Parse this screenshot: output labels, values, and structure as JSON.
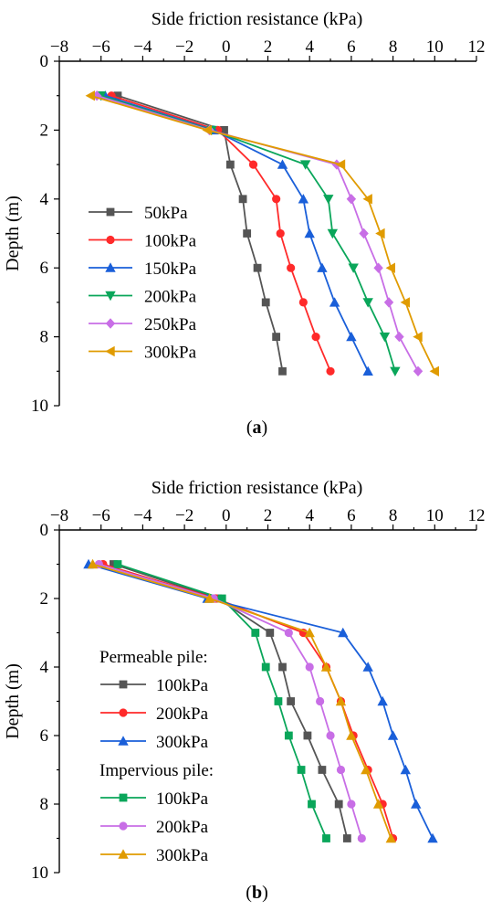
{
  "chart_data": [
    {
      "type": "line",
      "panel_label": "a",
      "xlabel": "Side friction resistance (kPa)",
      "ylabel": "Depth (m)",
      "xlim": [
        -8,
        12
      ],
      "ylim": [
        10,
        0
      ],
      "x_ticks": [
        -8,
        -6,
        -4,
        -2,
        0,
        2,
        4,
        6,
        8,
        10,
        12
      ],
      "y_ticks": [
        0,
        2,
        4,
        6,
        8,
        10
      ],
      "x_axis_position": "top",
      "y_inverted": true,
      "grid": false,
      "legend_position": "left-middle",
      "legend_title": "",
      "series": [
        {
          "name": "50kPa",
          "color": "#555555",
          "marker": "square",
          "depth": [
            1,
            2,
            3,
            4,
            5,
            6,
            7,
            8,
            9
          ],
          "values": [
            -5.2,
            -0.1,
            0.2,
            0.8,
            1.0,
            1.5,
            1.9,
            2.4,
            2.7
          ]
        },
        {
          "name": "100kPa",
          "color": "#ff2a2a",
          "marker": "circle",
          "depth": [
            1,
            2,
            3,
            4,
            5,
            6,
            7,
            8,
            9
          ],
          "values": [
            -5.5,
            -0.4,
            1.3,
            2.4,
            2.6,
            3.1,
            3.7,
            4.3,
            5.0
          ]
        },
        {
          "name": "150kPa",
          "color": "#1a5fd9",
          "marker": "triangle-up",
          "depth": [
            1,
            2,
            3,
            4,
            5,
            6,
            7,
            8,
            9
          ],
          "values": [
            -5.8,
            -0.6,
            2.7,
            3.7,
            4.0,
            4.6,
            5.2,
            6.0,
            6.8
          ]
        },
        {
          "name": "200kPa",
          "color": "#0aa65a",
          "marker": "triangle-down",
          "depth": [
            1,
            2,
            3,
            4,
            5,
            6,
            7,
            8,
            9
          ],
          "values": [
            -6.0,
            -0.7,
            3.8,
            4.9,
            5.1,
            6.1,
            6.8,
            7.6,
            8.1
          ]
        },
        {
          "name": "250kPa",
          "color": "#c86ee6",
          "marker": "diamond",
          "depth": [
            1,
            2,
            3,
            4,
            5,
            6,
            7,
            8,
            9
          ],
          "values": [
            -6.2,
            -0.8,
            5.3,
            6.0,
            6.6,
            7.3,
            7.8,
            8.3,
            9.2
          ]
        },
        {
          "name": "300kPa",
          "color": "#e09b00",
          "marker": "triangle-left",
          "depth": [
            1,
            2,
            3,
            4,
            5,
            6,
            7,
            8,
            9
          ],
          "values": [
            -6.5,
            -0.9,
            5.5,
            6.8,
            7.4,
            7.9,
            8.6,
            9.2,
            10.0
          ]
        }
      ]
    },
    {
      "type": "line",
      "panel_label": "b",
      "xlabel": "Side friction resistance (kPa)",
      "ylabel": "Depth (m)",
      "xlim": [
        -8,
        12
      ],
      "ylim": [
        10,
        0
      ],
      "x_ticks": [
        -8,
        -6,
        -4,
        -2,
        0,
        2,
        4,
        6,
        8,
        10,
        12
      ],
      "y_ticks": [
        0,
        2,
        4,
        6,
        8,
        10
      ],
      "x_axis_position": "top",
      "y_inverted": true,
      "grid": false,
      "legend_position": "left-middle",
      "legend_groups": [
        "Permeable pile:",
        "Impervious pile:"
      ],
      "series": [
        {
          "name": "100kPa",
          "group": "Permeable pile:",
          "color": "#555555",
          "marker": "square",
          "depth": [
            1,
            2,
            3,
            4,
            5,
            6,
            7,
            8,
            9
          ],
          "values": [
            -5.4,
            -0.4,
            2.1,
            2.7,
            3.1,
            3.9,
            4.6,
            5.4,
            5.8
          ]
        },
        {
          "name": "200kPa",
          "group": "Permeable pile:",
          "color": "#ff2a2a",
          "marker": "circle",
          "depth": [
            1,
            2,
            3,
            4,
            5,
            6,
            7,
            8,
            9
          ],
          "values": [
            -5.9,
            -0.5,
            3.7,
            4.8,
            5.5,
            6.1,
            6.8,
            7.5,
            8.0
          ]
        },
        {
          "name": "300kPa",
          "group": "Permeable pile:",
          "color": "#1a5fd9",
          "marker": "triangle-up",
          "depth": [
            1,
            2,
            3,
            4,
            5,
            6,
            7,
            8,
            9
          ],
          "values": [
            -6.6,
            -0.9,
            5.6,
            6.8,
            7.5,
            8.0,
            8.6,
            9.1,
            9.9
          ]
        },
        {
          "name": "100kPa",
          "group": "Impervious pile:",
          "color": "#0aa65a",
          "marker": "square",
          "depth": [
            1,
            2,
            3,
            4,
            5,
            6,
            7,
            8,
            9
          ],
          "values": [
            -5.2,
            -0.2,
            1.4,
            1.9,
            2.5,
            3.0,
            3.6,
            4.1,
            4.8
          ]
        },
        {
          "name": "200kPa",
          "group": "Impervious pile:",
          "color": "#c86ee6",
          "marker": "circle",
          "depth": [
            1,
            2,
            3,
            4,
            5,
            6,
            7,
            8,
            9
          ],
          "values": [
            -6.1,
            -0.6,
            3.0,
            4.0,
            4.5,
            5.0,
            5.5,
            6.0,
            6.5
          ]
        },
        {
          "name": "300kPa",
          "group": "Impervious pile:",
          "color": "#e09b00",
          "marker": "triangle-up",
          "depth": [
            1,
            2,
            3,
            4,
            5,
            6,
            7,
            8,
            9
          ],
          "values": [
            -6.4,
            -0.8,
            4.0,
            4.8,
            5.5,
            6.0,
            6.7,
            7.3,
            7.9
          ]
        }
      ]
    }
  ]
}
